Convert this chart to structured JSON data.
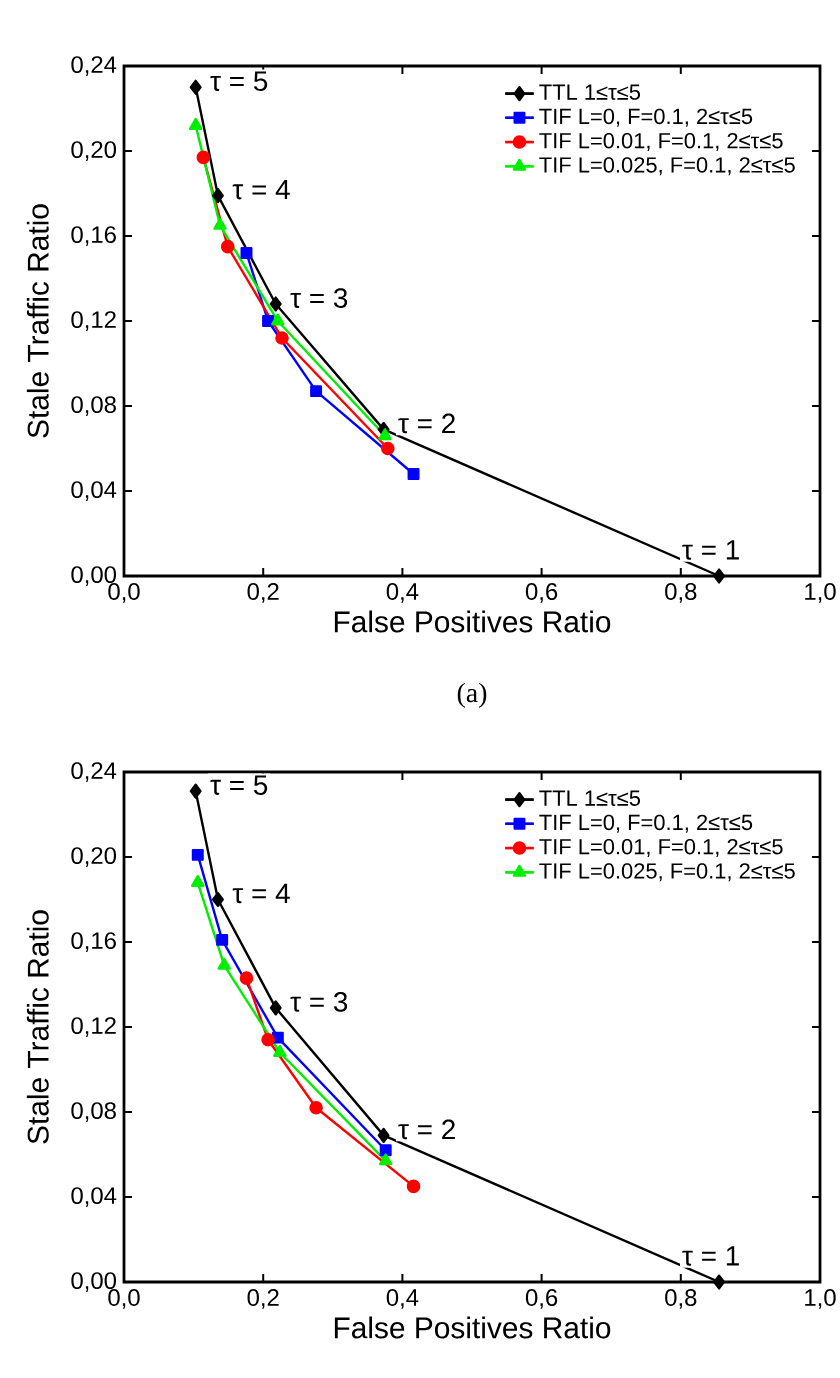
{
  "chart_data": [
    {
      "type": "line",
      "xlabel": "False Positives Ratio",
      "ylabel": "Stale Traffic Ratio",
      "legend": "top right",
      "grid": false,
      "line_style": "solid",
      "xlim": [
        0,
        1
      ],
      "ylim": [
        0,
        0.24
      ],
      "xticks": [
        {
          "value": 0,
          "label": "0,0"
        },
        {
          "value": 0.2,
          "label": "0,2"
        },
        {
          "value": 0.4,
          "label": "0,4"
        },
        {
          "value": 0.6,
          "label": "0,6"
        },
        {
          "value": 0.8,
          "label": "0,8"
        },
        {
          "value": 1,
          "label": "1,0"
        }
      ],
      "yticks": [
        {
          "value": 0,
          "label": "0,00"
        },
        {
          "value": 0.04,
          "label": "0,04"
        },
        {
          "value": 0.08,
          "label": "0,08"
        },
        {
          "value": 0.12,
          "label": "0,12"
        },
        {
          "value": 0.16,
          "label": "0,16"
        },
        {
          "value": 0.2,
          "label": "0,20"
        },
        {
          "value": 0.24,
          "label": "0,24"
        }
      ],
      "series": [
        {
          "name": "TTL 1≤τ≤5",
          "color": "#000000",
          "marker": "diamond",
          "x": [
            0.103,
            0.135,
            0.218,
            0.373,
            0.855
          ],
          "values": [
            0.23,
            0.179,
            0.128,
            0.069,
            0
          ]
        },
        {
          "name": "TIF L=0, F=0.1, 2≤τ≤5",
          "color": "#0000ff",
          "marker": "square",
          "x": [
            0.176,
            0.207,
            0.276,
            0.416
          ],
          "values": [
            0.152,
            0.12,
            0.087,
            0.048
          ]
        },
        {
          "name": "TIF L=0.01, F=0.1, 2≤τ≤5",
          "color": "#ff0000",
          "marker": "circle",
          "x": [
            0.114,
            0.149,
            0.227,
            0.379
          ],
          "values": [
            0.197,
            0.155,
            0.112,
            0.06
          ]
        },
        {
          "name": "TIF L=0.025, F=0.1, 2≤τ≤5",
          "color": "#00ee00",
          "marker": "triangle",
          "x": [
            0.103,
            0.138,
            0.221,
            0.375
          ],
          "values": [
            0.212,
            0.165,
            0.12,
            0.066
          ]
        }
      ],
      "annotations": [
        {
          "text": "τ = 5",
          "x": 0.103,
          "y": 0.23
        },
        {
          "text": "τ = 4",
          "x": 0.135,
          "y": 0.179
        },
        {
          "text": "τ = 3",
          "x": 0.218,
          "y": 0.128
        },
        {
          "text": "τ = 2",
          "x": 0.373,
          "y": 0.069
        },
        {
          "text": "τ = 1",
          "x": 0.855,
          "y": 0
        },
        "(a)"
      ]
    },
    {
      "type": "line",
      "xlabel": "False Positives Ratio",
      "ylabel": "Stale Traffic Ratio",
      "legend": "top right",
      "grid": false,
      "line_style": "solid",
      "xlim": [
        0,
        1
      ],
      "ylim": [
        0,
        0.24
      ],
      "xticks": [
        {
          "value": 0,
          "label": "0,0"
        },
        {
          "value": 0.2,
          "label": "0,2"
        },
        {
          "value": 0.4,
          "label": "0,4"
        },
        {
          "value": 0.6,
          "label": "0,6"
        },
        {
          "value": 0.8,
          "label": "0,8"
        },
        {
          "value": 1,
          "label": "1,0"
        }
      ],
      "yticks": [
        {
          "value": 0,
          "label": "0,00"
        },
        {
          "value": 0.04,
          "label": "0,04"
        },
        {
          "value": 0.08,
          "label": "0,08"
        },
        {
          "value": 0.12,
          "label": "0,12"
        },
        {
          "value": 0.16,
          "label": "0,16"
        },
        {
          "value": 0.2,
          "label": "0,20"
        },
        {
          "value": 0.24,
          "label": "0,24"
        }
      ],
      "series": [
        {
          "name": "TTL 1≤τ≤5",
          "color": "#000000",
          "marker": "diamond",
          "x": [
            0.103,
            0.135,
            0.218,
            0.373,
            0.855
          ],
          "values": [
            0.231,
            0.18,
            0.129,
            0.069,
            0
          ]
        },
        {
          "name": "TIF L=0, F=0.1, 2≤τ≤5",
          "color": "#0000ff",
          "marker": "square",
          "x": [
            0.106,
            0.141,
            0.221,
            0.376
          ],
          "values": [
            0.201,
            0.161,
            0.115,
            0.062
          ]
        },
        {
          "name": "TIF L=0.01, F=0.1, 2≤τ≤5",
          "color": "#ff0000",
          "marker": "circle",
          "x": [
            0.176,
            0.207,
            0.276,
            0.416
          ],
          "values": [
            0.143,
            0.114,
            0.082,
            0.045
          ]
        },
        {
          "name": "TIF L=0.025, F=0.1, 2≤τ≤5",
          "color": "#00ee00",
          "marker": "triangle",
          "x": [
            0.106,
            0.144,
            0.224,
            0.376
          ],
          "values": [
            0.188,
            0.149,
            0.108,
            0.057
          ]
        }
      ],
      "annotations": [
        {
          "text": "τ = 5",
          "x": 0.103,
          "y": 0.231
        },
        {
          "text": "τ = 4",
          "x": 0.135,
          "y": 0.18
        },
        {
          "text": "τ = 3",
          "x": 0.218,
          "y": 0.129
        },
        {
          "text": "τ = 2",
          "x": 0.373,
          "y": 0.069
        },
        {
          "text": "τ = 1",
          "x": 0.855,
          "y": 0
        }
      ]
    }
  ]
}
